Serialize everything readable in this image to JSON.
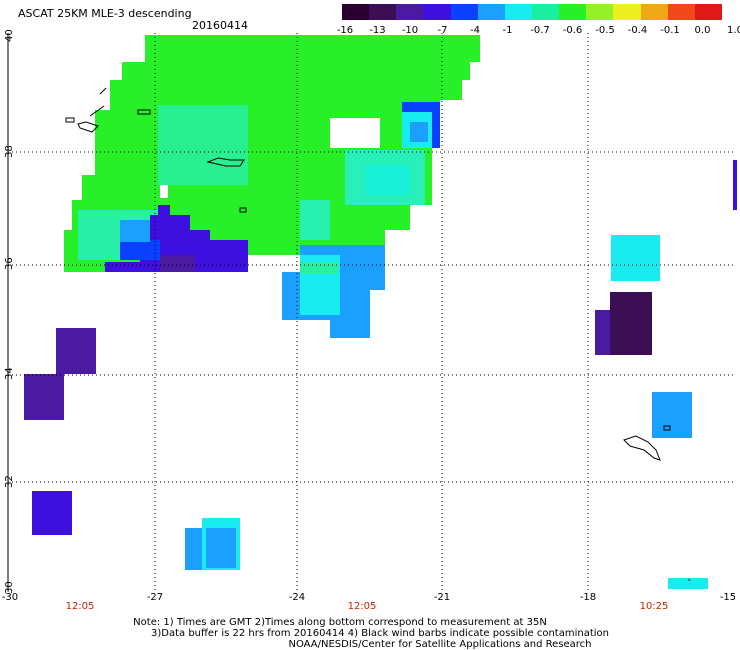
{
  "header": {
    "title": "ASCAT 25KM MLE-3 descending",
    "date": "20160414"
  },
  "colorbar": {
    "labels": [
      "-16",
      "-13",
      "-10",
      "-7",
      "-4",
      "-1",
      "-0.7",
      "-0.6",
      "-0.5",
      "-0.4",
      "-0.1",
      "0.0",
      "1.0"
    ],
    "colors": [
      "#2a0030",
      "#3c0f55",
      "#4a1aa0",
      "#3d10e0",
      "#0a40ff",
      "#1ca0ff",
      "#18ecf0",
      "#18f0a0",
      "#28f028",
      "#96f028",
      "#ecf020",
      "#f0a818",
      "#f04818",
      "#e01818"
    ]
  },
  "axes": {
    "lat_labels": [
      "40",
      "38",
      "36",
      "34",
      "32",
      "30"
    ],
    "lon_labels": [
      "-30",
      "-27",
      "-24",
      "-21",
      "-18",
      "-15"
    ],
    "time_labels": [
      "12:05",
      "12:05",
      "10:25"
    ]
  },
  "map": {
    "grid": true,
    "lat_range": [
      30,
      40
    ],
    "lon_range": [
      -30,
      -15
    ]
  },
  "notes": {
    "line1": "Note: 1) Times are GMT 2)Times along bottom correspond to measurement at 35N",
    "line2": "3)Data buffer is 22 hrs from 20160414 4) Black wind barbs indicate possible contamination",
    "line3": "NOAA/NESDIS/Center for Satellite Applications and Research"
  }
}
